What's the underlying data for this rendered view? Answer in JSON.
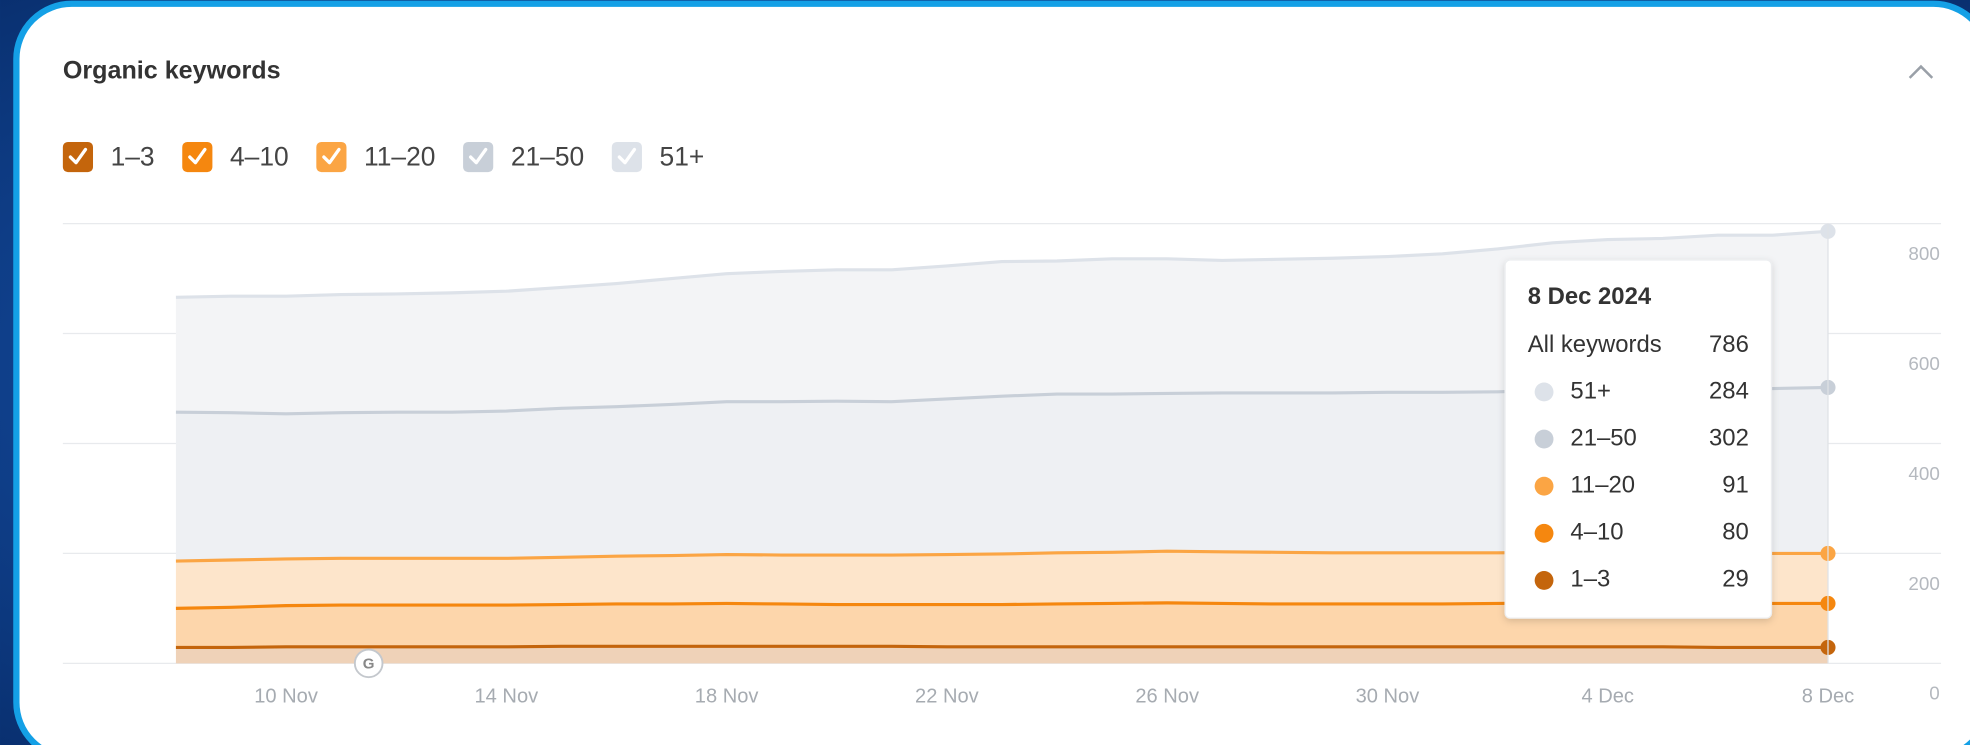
{
  "chart_data": {
    "type": "stacked_area",
    "title": "Organic keywords",
    "categories": [
      null,
      null,
      "10 Nov",
      null,
      null,
      null,
      "14 Nov",
      null,
      null,
      null,
      "18 Nov",
      null,
      null,
      null,
      "22 Nov",
      null,
      null,
      null,
      "26 Nov",
      null,
      null,
      null,
      "30 Nov",
      null,
      null,
      null,
      "4 Dec",
      null,
      null,
      null,
      "8 Dec"
    ],
    "series": [
      {
        "name": "1–3",
        "color": "#c4650c",
        "values": [
          29,
          29,
          30,
          30,
          30,
          30,
          30,
          31,
          31,
          31,
          31,
          31,
          31,
          31,
          30,
          30,
          30,
          30,
          30,
          30,
          30,
          30,
          30,
          30,
          30,
          30,
          30,
          30,
          29,
          29,
          29
        ]
      },
      {
        "name": "4–10",
        "color": "#f5870f",
        "values": [
          71,
          73,
          75,
          76,
          76,
          76,
          76,
          76,
          77,
          77,
          78,
          77,
          76,
          76,
          77,
          77,
          78,
          79,
          80,
          79,
          78,
          78,
          78,
          78,
          79,
          80,
          79,
          79,
          80,
          80,
          80
        ]
      },
      {
        "name": "11–20",
        "color": "#fba544",
        "values": [
          86,
          86,
          85,
          85,
          85,
          85,
          85,
          86,
          87,
          88,
          89,
          89,
          90,
          90,
          91,
          92,
          93,
          93,
          94,
          94,
          94,
          93,
          93,
          93,
          92,
          92,
          92,
          91,
          91,
          91,
          91
        ]
      },
      {
        "name": "21–50",
        "color": "#c8cfd8",
        "values": [
          271,
          268,
          264,
          265,
          266,
          266,
          268,
          271,
          272,
          275,
          278,
          279,
          280,
          279,
          283,
          287,
          289,
          288,
          287,
          289,
          290,
          291,
          292,
          292,
          293,
          295,
          296,
          297,
          299,
          300,
          302
        ]
      },
      {
        "name": "51+",
        "color": "#dde2e9",
        "values": [
          209,
          212,
          214,
          215,
          215,
          217,
          218,
          220,
          224,
          229,
          233,
          237,
          239,
          240,
          242,
          245,
          242,
          246,
          245,
          241,
          243,
          245,
          247,
          252,
          260,
          268,
          274,
          276,
          280,
          279,
          284
        ]
      }
    ],
    "ylim": [
      0,
      800
    ],
    "yticks": [
      0,
      200,
      400,
      600,
      800
    ],
    "grid": true,
    "annotations": [
      {
        "index": 3,
        "label": "G"
      }
    ],
    "tooltip": {
      "date": "8 Dec 2024",
      "total_label": "All keywords",
      "total": 786,
      "index": 30
    }
  }
}
